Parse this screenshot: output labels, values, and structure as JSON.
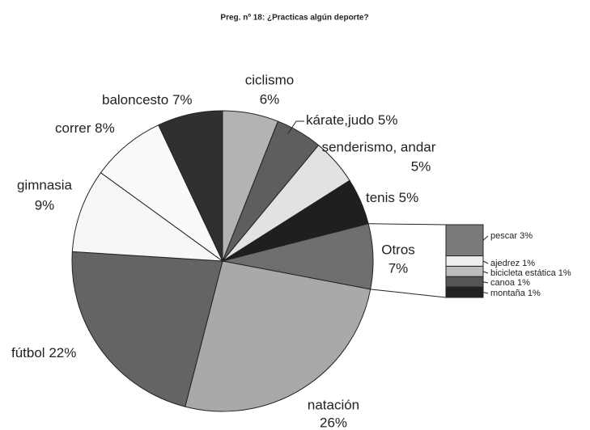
{
  "chart_data": {
    "type": "pie",
    "title": "Preg. nº 18: ¿Practicas algún deporte?",
    "categories": [
      "ciclismo",
      "kárate,judo",
      "senderismo, andar",
      "tenis",
      "Otros",
      "natación",
      "fútbol",
      "gimnasia",
      "correr",
      "baloncesto"
    ],
    "values": [
      6,
      5,
      5,
      5,
      7,
      26,
      22,
      9,
      8,
      7
    ],
    "value_labels": [
      "6%",
      "5%",
      "5%",
      "5%",
      "7%",
      "26%",
      "22%",
      "9%",
      "8%",
      "7%"
    ],
    "colors": [
      "#b3b3b3",
      "#5e5e5e",
      "#e2e2e2",
      "#1f1f1f",
      "#6e6e6e",
      "#a9a9a9",
      "#646464",
      "#f7f7f7",
      "#fafafa",
      "#303030"
    ],
    "bar_of_pie": {
      "categories": [
        "pescar",
        "ajedrez",
        "bicicleta estática",
        "canoa",
        "montaña"
      ],
      "values": [
        3,
        1,
        1,
        1,
        1
      ],
      "value_labels": [
        "3%",
        "1%",
        "1%",
        "1%",
        "1%"
      ],
      "colors": [
        "#7a7a7a",
        "#eeeeee",
        "#bdbdbd",
        "#555555",
        "#222222"
      ]
    }
  }
}
